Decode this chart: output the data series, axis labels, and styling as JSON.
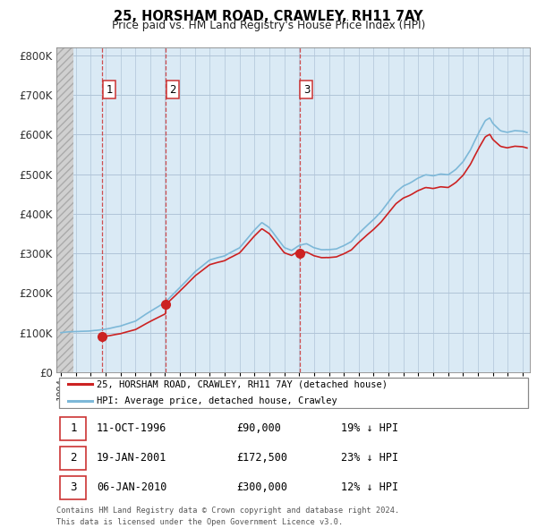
{
  "title": "25, HORSHAM ROAD, CRAWLEY, RH11 7AY",
  "subtitle": "Price paid vs. HM Land Registry's House Price Index (HPI)",
  "ylim": [
    0,
    820000
  ],
  "yticks": [
    0,
    100000,
    200000,
    300000,
    400000,
    500000,
    600000,
    700000,
    800000
  ],
  "ytick_labels": [
    "£0",
    "£100K",
    "£200K",
    "£300K",
    "£400K",
    "£500K",
    "£600K",
    "£700K",
    "£800K"
  ],
  "hpi_color": "#7db8d8",
  "price_color": "#cc2222",
  "marker_color": "#cc2222",
  "sale_dates": [
    1996.78,
    2001.05,
    2010.02
  ],
  "sale_prices": [
    90000,
    172500,
    300000
  ],
  "sale_labels": [
    "1",
    "2",
    "3"
  ],
  "vline_color": "#cc3333",
  "chart_bg_color": "#daeaf5",
  "hatch_color": "#c8c8c8",
  "grid_color": "#b0c4d8",
  "legend_label_price": "25, HORSHAM ROAD, CRAWLEY, RH11 7AY (detached house)",
  "legend_label_hpi": "HPI: Average price, detached house, Crawley",
  "table_data": [
    [
      "1",
      "11-OCT-1996",
      "£90,000",
      "19% ↓ HPI"
    ],
    [
      "2",
      "19-JAN-2001",
      "£172,500",
      "23% ↓ HPI"
    ],
    [
      "3",
      "06-JAN-2010",
      "£300,000",
      "12% ↓ HPI"
    ]
  ],
  "footnote": "Contains HM Land Registry data © Crown copyright and database right 2024.\nThis data is licensed under the Open Government Licence v3.0.",
  "xlim_start": 1993.7,
  "xlim_end": 2025.5,
  "hatch_end": 1994.83
}
